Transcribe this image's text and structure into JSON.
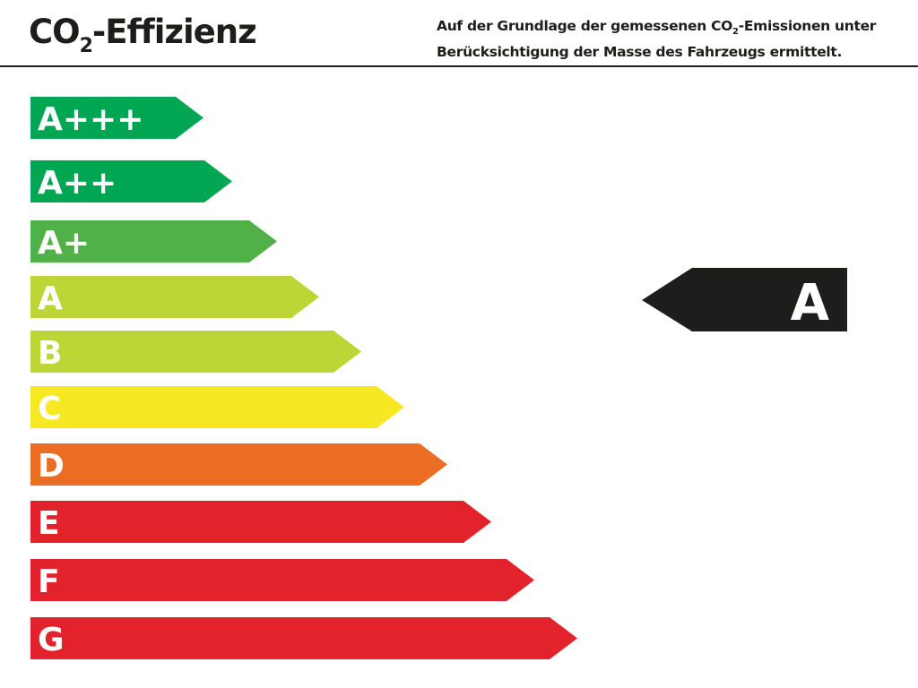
{
  "header": {
    "title_prefix": "CO",
    "title_sub": "2",
    "title_suffix": "-Effizienz",
    "desc_line1_prefix": "Auf der Grundlage der gemessenen CO",
    "desc_line1_sub": "2",
    "desc_line1_suffix": "-Emissionen unter",
    "desc_line2": "Berücksichtigung der Masse des Fahrzeugs ermittelt."
  },
  "classes": [
    {
      "label": "A+++",
      "color": "#00a651"
    },
    {
      "label": "A++",
      "color": "#00a651"
    },
    {
      "label": "A+",
      "color": "#50b148"
    },
    {
      "label": "A",
      "color": "#bdd535"
    },
    {
      "label": "B",
      "color": "#bdd535"
    },
    {
      "label": "C",
      "color": "#f6e924"
    },
    {
      "label": "D",
      "color": "#eb6d24"
    },
    {
      "label": "E",
      "color": "#e3232b"
    },
    {
      "label": "F",
      "color": "#e3232b"
    },
    {
      "label": "G",
      "color": "#e3232b"
    }
  ],
  "rating": {
    "label": "A",
    "color": "#1d1d1b"
  }
}
